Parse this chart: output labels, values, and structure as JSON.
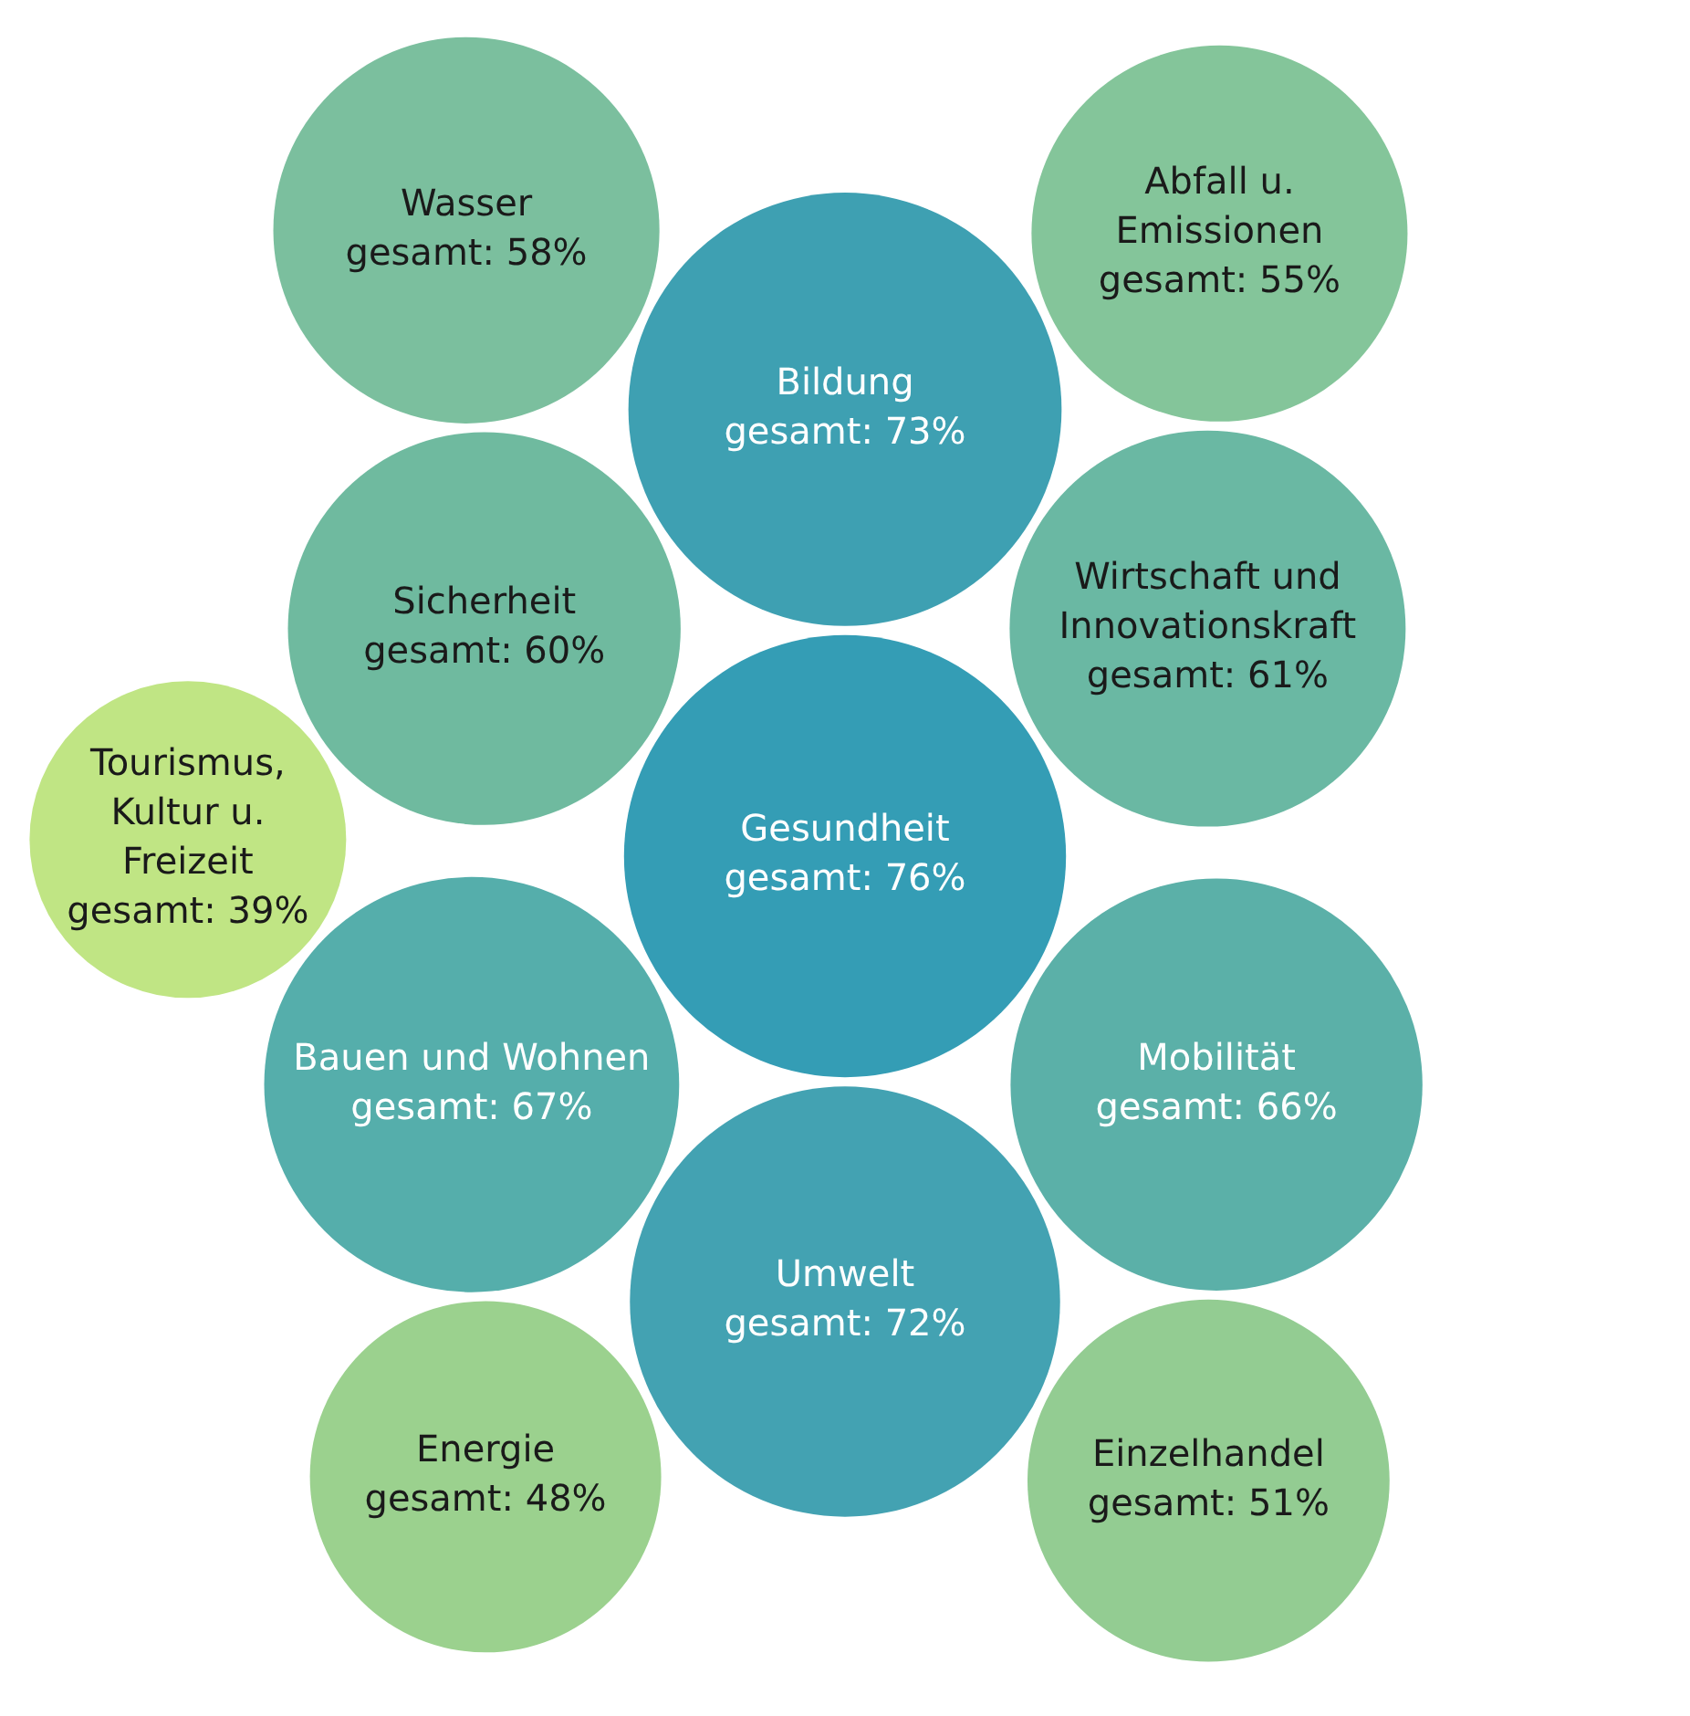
{
  "chart_data": {
    "type": "other",
    "categories": [
      "Gesundheit",
      "Mobilität",
      "Sicherheit",
      "Energie",
      "Abfall u. Emissionen",
      "Bauen und Wohnen",
      "Tourismus, Kultur u. Freizeit",
      "Einzelhandel",
      "Bildung",
      "Umwelt",
      "Wirtschaft und Innovationskraft",
      "Wasser"
    ],
    "values": [
      76,
      66,
      60,
      48,
      55,
      67,
      39,
      51,
      73,
      72,
      61,
      58
    ],
    "value_labels": [
      "gesamt: 76%",
      "gesamt: 66%",
      "gesamt: 60%",
      "gesamt: 48%",
      "gesamt: 55%",
      "gesamt: 67%",
      "gesamt: 39%",
      "gesamt: 51%",
      "gesamt: 73%",
      "gesamt: 72%",
      "gesamt: 61%",
      "gesamt: 58%"
    ],
    "colors": [
      "#349db5",
      "#5bb0a8",
      "#6fba9f",
      "#9bd18e",
      "#84c59a",
      "#55aeab",
      "#c0e584",
      "#93cc92",
      "#3ea0b2",
      "#43a2b2",
      "#6ab8a3",
      "#7bbf9e"
    ]
  }
}
